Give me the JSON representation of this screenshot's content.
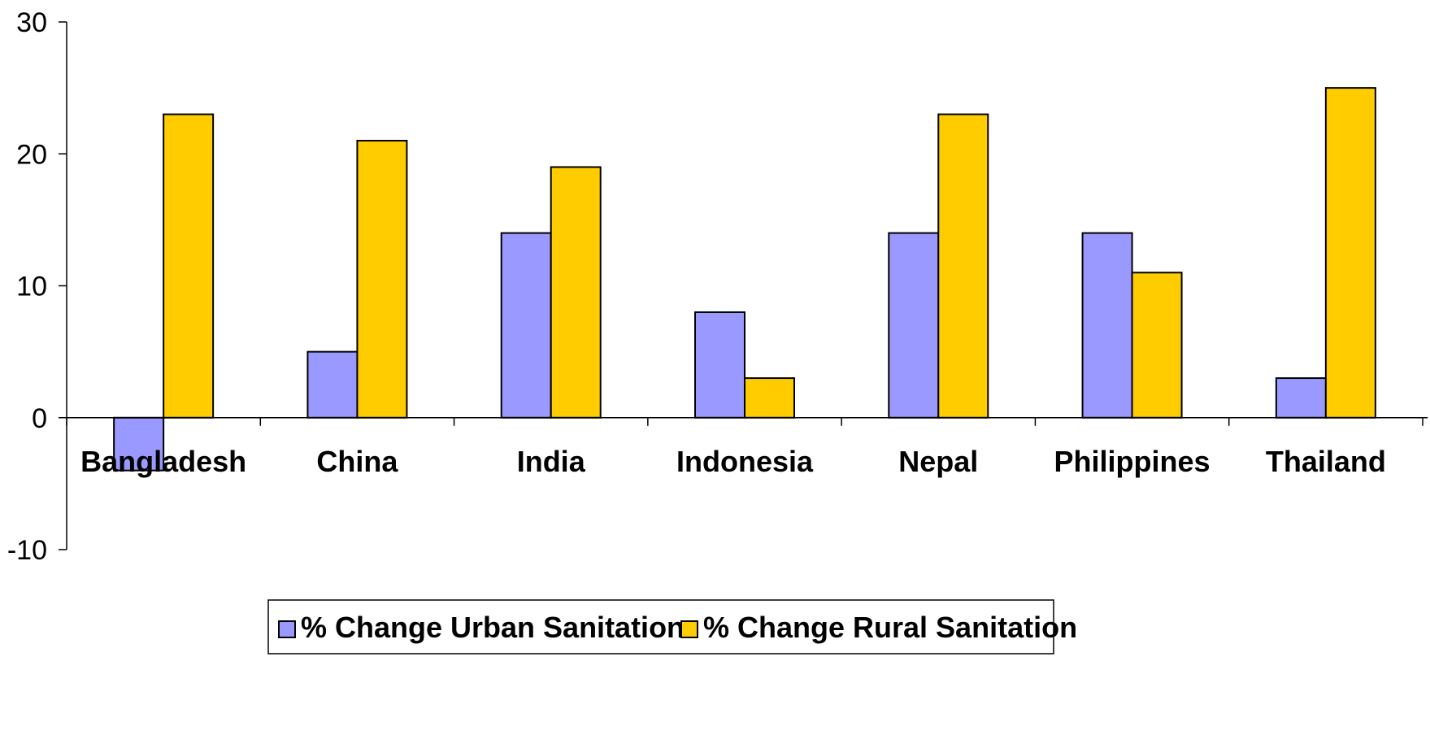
{
  "chart_data": {
    "type": "bar",
    "categories": [
      "Bangladesh",
      "China",
      "India",
      "Indonesia",
      "Nepal",
      "Philippines",
      "Thailand"
    ],
    "series": [
      {
        "name": "% Change Urban Sanitation",
        "color": "#9999ff",
        "values": [
          -4,
          5,
          14,
          8,
          14,
          14,
          3
        ]
      },
      {
        "name": "% Change Rural Sanitation",
        "color": "#ffcc00",
        "values": [
          23,
          21,
          19,
          3,
          23,
          11,
          25
        ]
      }
    ],
    "ylim": [
      -10,
      30
    ],
    "yticks": [
      -10,
      0,
      10,
      20,
      30
    ],
    "title": "",
    "xlabel": "",
    "ylabel": "",
    "grid": false,
    "legend_position": "bottom"
  }
}
